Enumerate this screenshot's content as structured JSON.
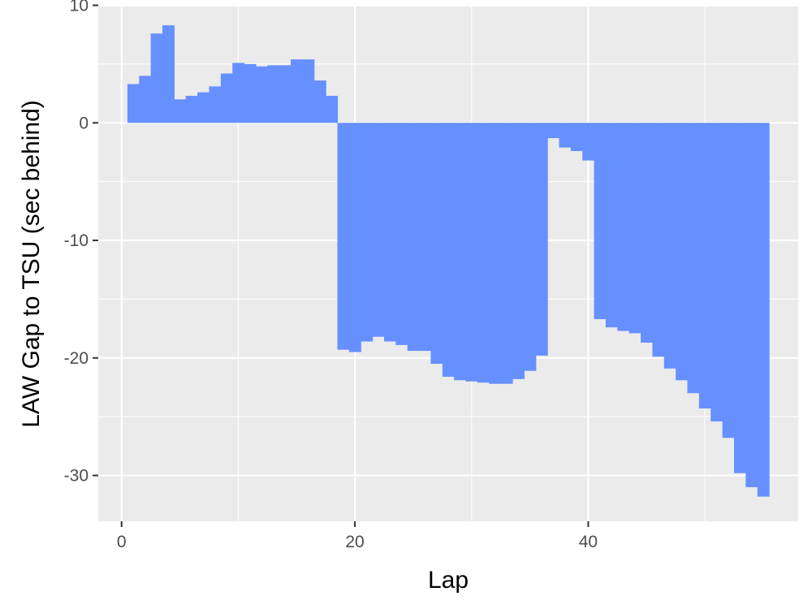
{
  "chart_data": {
    "type": "bar",
    "xlabel": "Lap",
    "ylabel": "LAW Gap to TSU (sec behind)",
    "xlim": [
      -2,
      58
    ],
    "ylim": [
      -33.9,
      9.9
    ],
    "x_ticks": [
      0,
      20,
      40
    ],
    "y_ticks": [
      10,
      0,
      -10,
      -20,
      -30
    ],
    "x_tick_labels": [
      "0",
      "20",
      "40"
    ],
    "y_tick_labels": [
      "10",
      "0",
      "-10",
      "-20",
      "-30"
    ],
    "grid": true,
    "legend": "none",
    "bar_color": "#6690FF",
    "panel_color": "#EBEBEB",
    "series": [
      {
        "x": [
          1,
          2,
          3,
          4,
          5,
          6,
          7,
          8,
          9,
          10,
          11,
          12,
          13,
          14,
          15,
          16,
          17,
          18,
          19,
          20,
          21,
          22,
          23,
          24,
          25,
          26,
          27,
          28,
          29,
          30,
          31,
          32,
          33,
          34,
          35,
          36,
          37,
          38,
          39,
          40,
          41,
          42,
          43,
          44,
          45,
          46,
          47,
          48,
          49,
          50,
          51,
          52,
          53,
          54,
          55
        ],
        "values": [
          3.3,
          4.0,
          7.6,
          8.3,
          2.0,
          2.3,
          2.6,
          3.1,
          4.2,
          5.1,
          5.0,
          4.8,
          4.9,
          4.9,
          5.4,
          5.4,
          3.6,
          2.3,
          -19.3,
          -19.5,
          -18.6,
          -18.2,
          -18.6,
          -18.9,
          -19.4,
          -19.4,
          -20.5,
          -21.6,
          -21.9,
          -22.0,
          -22.1,
          -22.2,
          -22.2,
          -21.8,
          -21.1,
          -19.8,
          -1.3,
          -2.1,
          -2.4,
          -3.2,
          -16.7,
          -17.4,
          -17.7,
          -17.9,
          -18.7,
          -19.9,
          -20.9,
          -21.9,
          -23.0,
          -24.3,
          -25.4,
          -26.8,
          -29.8,
          -31.0,
          -31.8
        ]
      }
    ]
  }
}
